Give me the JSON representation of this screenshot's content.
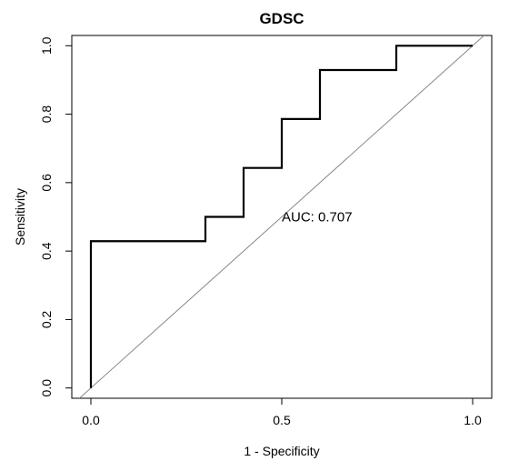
{
  "chart_data": {
    "type": "line",
    "title": "GDSC",
    "xlabel": "1 - Specificity",
    "ylabel": "Sensitivity",
    "xlim": [
      -0.05,
      1.05
    ],
    "ylim": [
      -0.03,
      1.03
    ],
    "x_ticks": [
      0.0,
      0.5,
      1.0
    ],
    "x_tick_labels": [
      "0.0",
      "0.5",
      "1.0"
    ],
    "y_ticks": [
      0.0,
      0.2,
      0.4,
      0.6,
      0.8,
      1.0
    ],
    "y_tick_labels": [
      "0.0",
      "0.2",
      "0.4",
      "0.6",
      "0.8",
      "1.0"
    ],
    "grid": false,
    "series": [
      {
        "style": "step",
        "color": "#000000",
        "x": [
          0.0,
          0.0,
          0.3,
          0.3,
          0.4,
          0.4,
          0.5,
          0.5,
          0.6,
          0.6,
          0.8,
          0.8,
          1.0
        ],
        "y": [
          0.0,
          0.429,
          0.429,
          0.5,
          0.5,
          0.643,
          0.643,
          0.786,
          0.786,
          0.929,
          0.929,
          1.0,
          1.0
        ]
      },
      {
        "style": "diagonal",
        "color": "#888888",
        "x": [
          -0.05,
          1.05
        ],
        "y": [
          -0.05,
          1.05
        ]
      }
    ],
    "annotations": [
      {
        "text": "AUC: 0.707",
        "x": 0.5,
        "y": 0.5
      }
    ]
  }
}
